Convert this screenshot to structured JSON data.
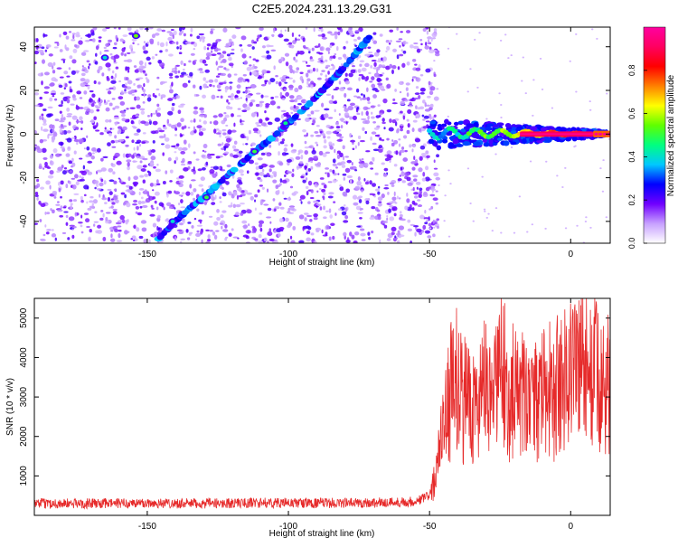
{
  "title": "C2E5.2024.231.13.29.G31",
  "chart_data": [
    {
      "type": "heatmap",
      "xlabel": "Height of straight line (km)",
      "ylabel": "Frequency (Hz)",
      "xlim": [
        -190,
        14
      ],
      "ylim": [
        -50,
        49
      ],
      "xticks": [
        -150,
        -100,
        -50,
        0
      ],
      "yticks": [
        -40,
        -20,
        0,
        20,
        40
      ],
      "xtick_labels": [
        "-150",
        "-100",
        "-50",
        "0"
      ],
      "ytick_labels": [
        "-40",
        "-20",
        "0",
        "20",
        "40"
      ],
      "grid": false,
      "noise_region_x": [
        -190,
        -50
      ],
      "signal_track": [
        {
          "x": -146,
          "y": -48
        },
        {
          "x": -140,
          "y": -40
        },
        {
          "x": -135,
          "y": -34
        },
        {
          "x": -130,
          "y": -29
        },
        {
          "x": -125,
          "y": -23
        },
        {
          "x": -118,
          "y": -15
        },
        {
          "x": -112,
          "y": -8
        },
        {
          "x": -106,
          "y": -2
        },
        {
          "x": -100,
          "y": 5
        },
        {
          "x": -94,
          "y": 12
        },
        {
          "x": -88,
          "y": 20
        },
        {
          "x": -82,
          "y": 28
        },
        {
          "x": -76,
          "y": 37
        },
        {
          "x": -71,
          "y": 45
        }
      ],
      "isolated_peaks": [
        {
          "x": -154,
          "y": 45,
          "value": 0.55
        },
        {
          "x": -165,
          "y": 35,
          "value": 0.4
        },
        {
          "x": -112,
          "y": -8,
          "value": 0.5
        },
        {
          "x": -101,
          "y": 5,
          "value": 0.45
        },
        {
          "x": -129,
          "y": -29,
          "value": 0.5
        },
        {
          "x": -141,
          "y": -40,
          "value": 0.4
        }
      ],
      "carrier": {
        "y": 0,
        "x_start": -50,
        "x_end": 14
      },
      "colorbar": {
        "label": "Normalized spectral amplitude",
        "range": [
          0,
          1
        ],
        "ticks": [
          0.0,
          0.2,
          0.4,
          0.6,
          0.8
        ],
        "tick_labels": [
          "0.0",
          "0.2",
          "0.4",
          "0.6",
          "0.8"
        ],
        "colors": [
          "#ffffff",
          "#c7a0ff",
          "#7000ff",
          "#0000ff",
          "#00c8ff",
          "#00ff80",
          "#60ff00",
          "#ffff00",
          "#ff8000",
          "#ff0000",
          "#ff0060",
          "#ff00a0"
        ]
      }
    },
    {
      "type": "line",
      "xlabel": "Height of straight line (km)",
      "ylabel": "SNR (10 * v/v)",
      "xlim": [
        -190,
        14
      ],
      "ylim": [
        0,
        5500
      ],
      "xticks": [
        -150,
        -100,
        -50,
        0
      ],
      "yticks": [
        1000,
        2000,
        3000,
        4000,
        5000
      ],
      "xtick_labels": [
        "-150",
        "-100",
        "-50",
        "0"
      ],
      "ytick_labels": [
        "1000",
        "2000",
        "3000",
        "4000",
        "5000"
      ],
      "grid": false,
      "series": [
        {
          "color": "#e62a2a",
          "x": [
            -190,
            -170,
            -150,
            -130,
            -110,
            -90,
            -70,
            -55,
            -50,
            -48,
            -46,
            -44,
            -42,
            -40,
            -38,
            -36,
            -34,
            -32,
            -30,
            -28,
            -26,
            -24,
            -22,
            -20,
            -18,
            -16,
            -14,
            -12,
            -10,
            -8,
            -6,
            -4,
            -2,
            0,
            2,
            4,
            6,
            8,
            10,
            12,
            14
          ],
          "y": [
            300,
            300,
            310,
            300,
            320,
            310,
            320,
            350,
            500,
            900,
            1800,
            2500,
            3200,
            3500,
            2800,
            3300,
            2600,
            3000,
            3300,
            2500,
            3600,
            3800,
            2800,
            3200,
            2800,
            3000,
            2600,
            2900,
            3000,
            3300,
            3000,
            3200,
            3500,
            3800,
            3900,
            4100,
            3700,
            3900,
            3200,
            3100,
            3400
          ]
        }
      ]
    }
  ]
}
